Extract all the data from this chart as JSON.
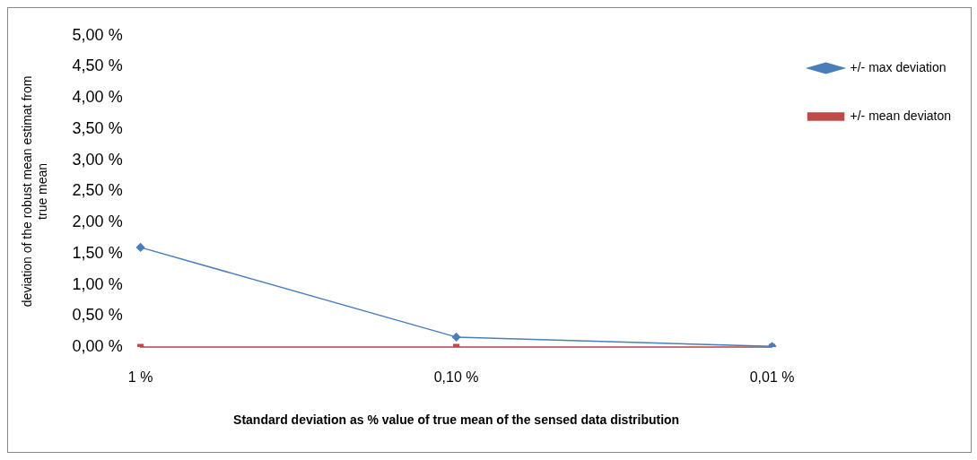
{
  "chart_data": {
    "type": "line",
    "xlabel": "Standard deviation as % value of true mean of the sensed data distribution",
    "ylabel": "deviation of the robust mean estimat from true mean",
    "categories": [
      "1 %",
      "0,10 %",
      "0,01 %"
    ],
    "series": [
      {
        "name": "+/- max deviation",
        "color": "#4a7ebb",
        "values": [
          1.6,
          0.16,
          0.01
        ],
        "marker": "diamond"
      },
      {
        "name": "+/- mean deviaton",
        "color": "#be4b48",
        "values": [
          0,
          0,
          0
        ],
        "marker": "square"
      }
    ],
    "ylim": [
      0,
      5
    ],
    "yticks": [
      {
        "value": 0,
        "label": "0,00 %"
      },
      {
        "value": 0.5,
        "label": "0,50 %"
      },
      {
        "value": 1,
        "label": "1,00 %"
      },
      {
        "value": 1.5,
        "label": "1,50 %"
      },
      {
        "value": 2,
        "label": "2,00 %"
      },
      {
        "value": 2.5,
        "label": "2,50 %"
      },
      {
        "value": 3,
        "label": "3,00 %"
      },
      {
        "value": 3.5,
        "label": "3,50 %"
      },
      {
        "value": 4,
        "label": "4,00 %"
      },
      {
        "value": 4.5,
        "label": "4,50 %"
      },
      {
        "value": 5,
        "label": "5,00 %"
      }
    ],
    "grid": false,
    "legend": "top right"
  }
}
